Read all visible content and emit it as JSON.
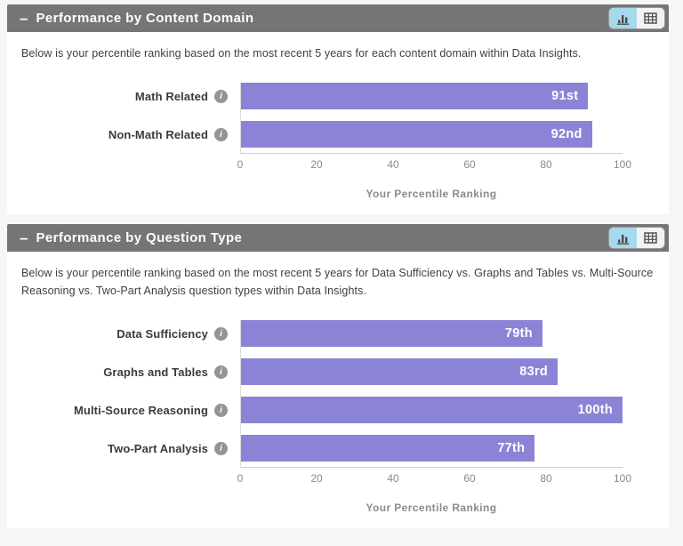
{
  "colors": {
    "page_bg": "#f6f6f6",
    "header_bg": "#757575",
    "panel_bg": "#ffffff",
    "bar": "#8b84d6",
    "active_view_bg": "#a6d9ec",
    "inactive_view_bg": "#f2f2f2"
  },
  "panels": [
    {
      "collapse_label": "–",
      "title": "Performance by Content Domain",
      "description": "Below is your percentile ranking based on the most recent 5 years for each content domain within Data Insights.",
      "toolbar": {
        "chart_view_icon": "bar-chart-icon",
        "table_view_icon": "table-grid-icon",
        "active_view": "chart"
      }
    },
    {
      "collapse_label": "–",
      "title": "Performance by Question Type",
      "description": "Below is your percentile ranking based on the most recent 5 years for Data Sufficiency vs. Graphs and Tables vs. Multi-Source Reasoning vs. Two-Part Analysis question types within Data Insights.",
      "toolbar": {
        "chart_view_icon": "bar-chart-icon",
        "table_view_icon": "table-grid-icon",
        "active_view": "chart"
      }
    }
  ],
  "chart_data": [
    {
      "type": "bar",
      "orientation": "horizontal",
      "categories": [
        "Math Related",
        "Non-Math Related"
      ],
      "values": [
        91,
        92
      ],
      "value_labels": [
        "91st",
        "92nd"
      ],
      "xlabel": "Your Percentile Ranking",
      "xlim": [
        0,
        100
      ],
      "xticks": [
        0,
        20,
        40,
        60,
        80,
        100
      ],
      "bar_color": "#8b84d6",
      "grid": false,
      "legend": null
    },
    {
      "type": "bar",
      "orientation": "horizontal",
      "categories": [
        "Data Sufficiency",
        "Graphs and Tables",
        "Multi-Source Reasoning",
        "Two-Part Analysis"
      ],
      "values": [
        79,
        83,
        100,
        77
      ],
      "value_labels": [
        "79th",
        "83rd",
        "100th",
        "77th"
      ],
      "xlabel": "Your Percentile Ranking",
      "xlim": [
        0,
        100
      ],
      "xticks": [
        0,
        20,
        40,
        60,
        80,
        100
      ],
      "bar_color": "#8b84d6",
      "grid": false,
      "legend": null
    }
  ]
}
